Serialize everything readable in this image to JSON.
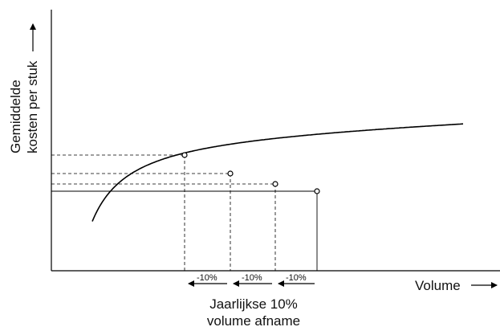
{
  "y_axis_label_line1": "Gemiddelde",
  "y_axis_label_line2": "kosten per stuk",
  "x_axis_label": "Volume",
  "step_labels": [
    "-10%",
    "-10%",
    "-10%"
  ],
  "caption_line1": "Jaarlijkse 10%",
  "caption_line2": "volume afname",
  "colors": {
    "line": "#000000"
  }
}
